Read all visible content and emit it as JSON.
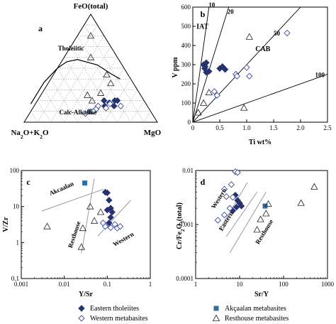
{
  "colors": {
    "eastern": "#27336f",
    "western": "#3b4aa0",
    "akcaalan": "#2f6ea3",
    "resthouse": "#222222",
    "axis": "#000000",
    "divider": "#999999"
  },
  "legend": [
    {
      "key": "eastern",
      "label": "Eastern tholeiites",
      "marker": "filled-diamond"
    },
    {
      "key": "akcaalan",
      "label": "Akçaalan metabasites",
      "marker": "filled-square"
    },
    {
      "key": "western",
      "label": "Western metabasites",
      "marker": "open-diamond"
    },
    {
      "key": "resthouse",
      "label": "Resthouse metabasites",
      "marker": "open-triangle"
    }
  ],
  "chart_data": [
    {
      "id": "a",
      "type": "scatter",
      "variant": "ternary AFM",
      "panel_label": "a",
      "vertex_labels": {
        "top": "FeO(total)",
        "left": "Na2O+K2O",
        "right": "MgO"
      },
      "field_labels": [
        "Tholeiitic",
        "Calc-Alkaline"
      ],
      "grid": true,
      "divider": [
        [
          5,
          17
        ],
        [
          15,
          37
        ],
        [
          25,
          50
        ],
        [
          32,
          56
        ],
        [
          40,
          58
        ],
        [
          55,
          53
        ],
        [
          65,
          45
        ],
        [
          72,
          40
        ]
      ],
      "series": [
        {
          "key": "eastern",
          "points": [
            [
              20,
              20,
              60
            ],
            [
              15,
              25,
              60
            ],
            [
              20,
              22,
              58
            ],
            [
              18,
              27,
              55
            ],
            [
              20,
              30,
              50
            ],
            [
              15,
              32,
              53
            ]
          ]
        },
        {
          "key": "akcaalan",
          "points": [
            [
              10,
              45,
              45
            ]
          ]
        },
        {
          "key": "western",
          "points": [
            [
              15,
              20,
              65
            ],
            [
              17,
              27,
              56
            ],
            [
              13,
              32,
              55
            ],
            [
              15,
              37,
              48
            ],
            [
              12,
              40,
              48
            ],
            [
              10,
              43,
              47
            ],
            [
              8,
              50,
              42
            ]
          ]
        },
        {
          "key": "resthouse",
          "points": [
            [
              36,
              17,
              47
            ],
            [
              27,
              29,
              44
            ],
            [
              20,
              39,
              41
            ],
            [
              25,
              40,
              35
            ],
            [
              44,
              16,
              40
            ],
            [
              60,
              20,
              20
            ],
            [
              80,
              10,
              10
            ]
          ]
        }
      ]
    },
    {
      "id": "b",
      "type": "scatter",
      "panel_label": "b",
      "xlabel": "Ti wt%",
      "ylabel": "V ppm",
      "xlim": [
        0,
        2.5
      ],
      "ylim": [
        0,
        600
      ],
      "xticks": [
        "0",
        "0.5",
        "1.0",
        "1.5",
        "2.0",
        "2.5"
      ],
      "yticks": [
        "0",
        "100",
        "200",
        "300",
        "400",
        "500",
        "600"
      ],
      "field_labels": [
        "IAT",
        "CAB"
      ],
      "ratio_lines": [
        {
          "label": "10",
          "ratio": 10
        },
        {
          "label": "20",
          "ratio": 20
        },
        {
          "label": "50",
          "ratio": 50
        },
        {
          "label": "100",
          "ratio": 100
        }
      ],
      "series": [
        {
          "key": "eastern",
          "points": [
            [
              0.2,
              300
            ],
            [
              0.23,
              290
            ],
            [
              0.25,
              310
            ],
            [
              0.22,
              280
            ],
            [
              0.25,
              260
            ],
            [
              0.3,
              265
            ],
            [
              0.5,
              280
            ],
            [
              0.55,
              290
            ],
            [
              0.6,
              275
            ]
          ]
        },
        {
          "key": "western",
          "points": [
            [
              0.4,
              160
            ],
            [
              0.45,
              140
            ],
            [
              0.8,
              250
            ],
            [
              0.82,
              240
            ],
            [
              1.0,
              285
            ],
            [
              1.05,
              240
            ],
            [
              1.75,
              465
            ]
          ]
        },
        {
          "key": "resthouse",
          "points": [
            [
              0.1,
              50
            ],
            [
              0.2,
              100
            ],
            [
              0.3,
              155
            ],
            [
              1.05,
              445
            ],
            [
              0.95,
              75
            ]
          ]
        }
      ]
    },
    {
      "id": "c",
      "type": "scatter",
      "panel_label": "c",
      "xlabel": "Y/Sr",
      "ylabel": "V/Zr",
      "xscale": "log",
      "yscale": "log",
      "xlim": [
        0.001,
        1
      ],
      "ylim": [
        0.1,
        100
      ],
      "xticks": [
        "0.001",
        "0.01",
        "0.1",
        "1"
      ],
      "yticks": [
        "0.1",
        "1",
        "10",
        "100"
      ],
      "field_labels": [
        "Akcaalan",
        "Resthouse",
        "Western"
      ],
      "divider_lines": [
        [
          [
            0.003,
            7.5
          ],
          [
            0.08,
            30
          ]
        ],
        [
          [
            0.025,
            0.5
          ],
          [
            0.05,
            60
          ]
        ],
        [
          [
            0.06,
            1.5
          ],
          [
            0.35,
            15
          ]
        ]
      ],
      "series": [
        {
          "key": "eastern",
          "points": [
            [
              0.09,
              25
            ],
            [
              0.1,
              24
            ],
            [
              0.11,
              15
            ],
            [
              0.1,
              8
            ],
            [
              0.12,
              9
            ],
            [
              0.13,
              7
            ],
            [
              0.12,
              5
            ],
            [
              0.11,
              3.5
            ]
          ]
        },
        {
          "key": "akcaalan",
          "points": [
            [
              0.03,
              45
            ]
          ]
        },
        {
          "key": "western",
          "points": [
            [
              0.08,
              3.5
            ],
            [
              0.09,
              2.8
            ],
            [
              0.12,
              2.6
            ],
            [
              0.15,
              3.2
            ],
            [
              0.17,
              2.5
            ],
            [
              0.2,
              2.8
            ]
          ]
        },
        {
          "key": "resthouse",
          "points": [
            [
              0.004,
              2.8
            ],
            [
              0.025,
              0.75
            ],
            [
              0.027,
              2.5
            ],
            [
              0.04,
              10
            ],
            [
              0.05,
              4
            ],
            [
              0.07,
              7
            ]
          ]
        }
      ]
    },
    {
      "id": "d",
      "type": "scatter",
      "panel_label": "d",
      "xlabel": "Sr/Y",
      "ylabel": "Cr/Fe2O3(total)",
      "xscale": "log",
      "yscale": "log",
      "xlim": [
        1,
        1000
      ],
      "ylim": [
        0.0001,
        0.01
      ],
      "xticks": [
        "1",
        "10",
        "100",
        "1000"
      ],
      "yticks": [
        "0.0001",
        "0.001",
        "0.01"
      ],
      "field_labels": [
        "Western",
        "Eastern",
        "Resthouse"
      ],
      "divider_lines": [
        [
          [
            3.5,
            0.0008
          ],
          [
            15,
            0.006
          ]
        ],
        [
          [
            5,
            0.0006
          ],
          [
            25,
            0.004
          ]
        ],
        [
          [
            6,
            0.0003
          ],
          [
            40,
            0.004
          ]
        ]
      ],
      "series": [
        {
          "key": "eastern",
          "points": [
            [
              8,
              0.0035
            ],
            [
              9,
              0.0028
            ],
            [
              10,
              0.0025
            ],
            [
              11,
              0.0022
            ],
            [
              8.5,
              0.0021
            ],
            [
              7,
              0.0018
            ]
          ]
        },
        {
          "key": "akcaalan",
          "points": [
            [
              38,
              0.0022
            ]
          ]
        },
        {
          "key": "western",
          "points": [
            [
              8,
              0.0095
            ],
            [
              9,
              0.0092
            ],
            [
              3.2,
              0.0012
            ],
            [
              4.5,
              0.0015
            ],
            [
              6,
              0.002
            ],
            [
              5,
              0.0033
            ],
            [
              4.5,
              0.0045
            ],
            [
              6.5,
              0.0055
            ],
            [
              7,
              0.0032
            ]
          ]
        },
        {
          "key": "resthouse",
          "points": [
            [
              25,
              0.0008
            ],
            [
              30,
              0.00125
            ],
            [
              40,
              0.0016
            ],
            [
              45,
              0.0024
            ],
            [
              250,
              0.0025
            ],
            [
              500,
              0.005
            ]
          ]
        }
      ]
    }
  ]
}
